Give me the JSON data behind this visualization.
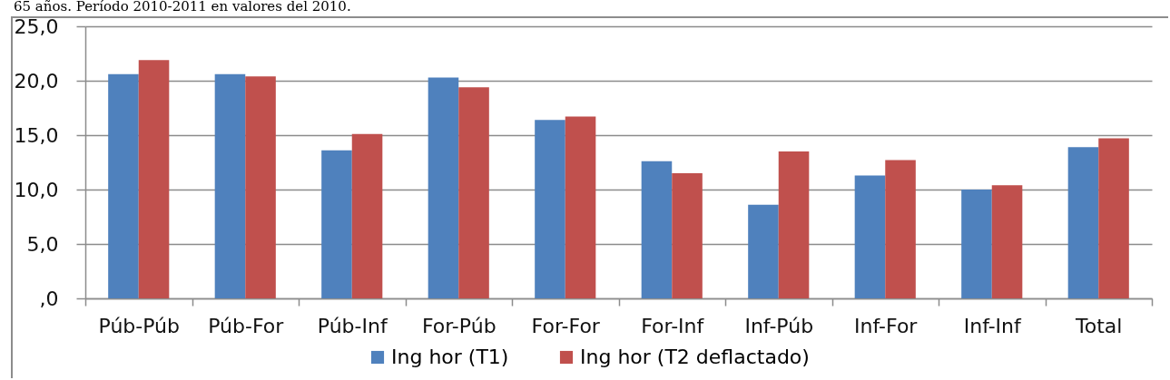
{
  "chart_data": {
    "type": "bar",
    "title": "65 años. Período 2010-2011 en valores del 2010.",
    "categories": [
      "Púb-Púb",
      "Púb-For",
      "Púb-Inf",
      "For-Púb",
      "For-For",
      "For-Inf",
      "Inf-Púb",
      "Inf-For",
      "Inf-Inf",
      "Total"
    ],
    "series": [
      {
        "name": "Ing hor (T1)",
        "color": "#4f81bd",
        "values": [
          20.6,
          20.6,
          13.6,
          20.3,
          16.4,
          12.6,
          8.6,
          11.3,
          10.0,
          13.9
        ]
      },
      {
        "name": "Ing hor (T2 deflactado)",
        "color": "#c0504d",
        "values": [
          21.9,
          20.4,
          15.1,
          19.4,
          16.7,
          11.5,
          13.5,
          12.7,
          10.4,
          14.7
        ]
      }
    ],
    "ylim": [
      0,
      25
    ],
    "yticks": [
      {
        "value": 0,
        "label": ",0"
      },
      {
        "value": 5,
        "label": "5,0"
      },
      {
        "value": 10,
        "label": "10,0"
      },
      {
        "value": 15,
        "label": "15,0"
      },
      {
        "value": 20,
        "label": "20,0"
      },
      {
        "value": 25,
        "label": "25,0"
      }
    ],
    "grid": "y",
    "legend": "bottom"
  }
}
